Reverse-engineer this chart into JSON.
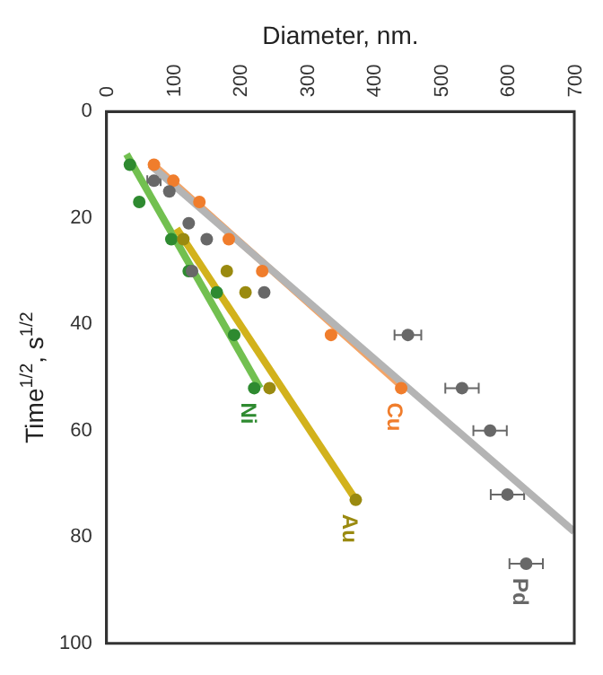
{
  "chart_data": {
    "type": "scatter",
    "xlabel": "Diameter, nm.",
    "ylabel": "Time$^{1/2}$, s$^{1/2}$",
    "xlim": [
      0,
      700
    ],
    "xticks": [
      0,
      100,
      200,
      300,
      400,
      500,
      600,
      700
    ],
    "ylim": [
      100,
      0
    ],
    "yticks": [
      0,
      20,
      40,
      60,
      80,
      100
    ],
    "grid": false,
    "legend": false,
    "marker": "circle",
    "series": [
      {
        "name": "Pd",
        "color": "#686868",
        "x": [
          71,
          94,
          123,
          150,
          128,
          236,
          451,
          532,
          574,
          600,
          628
        ],
        "values": [
          13,
          15,
          21,
          24,
          30,
          34,
          42,
          52,
          60,
          72,
          85
        ],
        "xerrors": [
          10,
          null,
          null,
          null,
          null,
          null,
          20,
          25,
          25,
          25,
          25
        ]
      },
      {
        "name": "Cu",
        "color": "#f07d2c",
        "x": [
          71,
          100,
          139,
          183,
          233,
          336,
          441
        ],
        "values": [
          10,
          13,
          17,
          24,
          30,
          42,
          52
        ]
      },
      {
        "name": "Au",
        "color": "#9a8a10",
        "x": [
          115,
          180,
          208,
          244,
          373
        ],
        "values": [
          24,
          30,
          34,
          52,
          73
        ]
      },
      {
        "name": "Ni",
        "color": "#2e8a30",
        "x": [
          35,
          49,
          97,
          123,
          165,
          191,
          221
        ],
        "values": [
          10,
          17,
          24,
          30,
          34,
          42,
          52
        ]
      },
      {
        "type": "line",
        "color": "#b4b4b4",
        "x": [
          65,
          700
        ],
        "values": [
          10,
          79
        ],
        "marker": "none"
      },
      {
        "type": "line",
        "color": "#f2a468",
        "x": [
          70,
          445
        ],
        "values": [
          10,
          52
        ],
        "marker": "none"
      },
      {
        "type": "line",
        "color": "#d2b21c",
        "x": [
          105,
          373
        ],
        "values": [
          22,
          73
        ],
        "marker": "none"
      },
      {
        "type": "line",
        "color": "#72c050",
        "x": [
          30,
          230
        ],
        "values": [
          8,
          52
        ],
        "marker": "none"
      }
    ]
  }
}
